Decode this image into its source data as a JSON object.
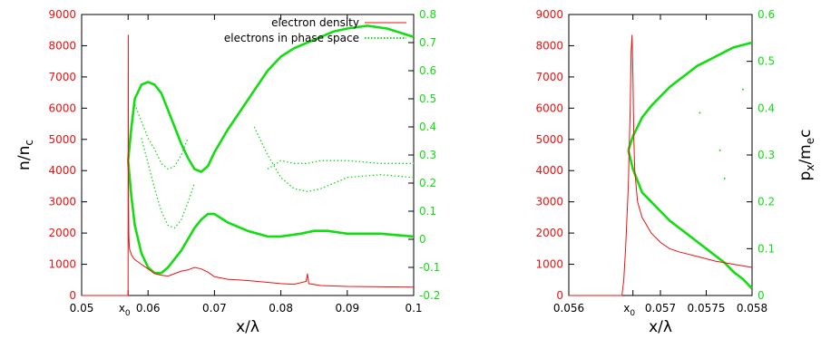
{
  "colors": {
    "density": "#ee1111",
    "phase": "#11dd11",
    "frame": "#000000"
  },
  "chart_data": [
    {
      "type": "line",
      "panel": "left",
      "xlabel": "x/λ",
      "ylabel_left": "n/n",
      "ylabel_left_sub": "c",
      "ylabel_right": "",
      "xlim": [
        0.05,
        0.1
      ],
      "ylim_left": [
        0,
        9000
      ],
      "ylim_right": [
        -0.2,
        0.8
      ],
      "x_ticks": [
        "0.05",
        "",
        "0.06",
        "0.07",
        "0.08",
        "0.09",
        "0.1"
      ],
      "x0_label": "x",
      "x0_sub": "0",
      "y_ticks_left": [
        "0",
        "1000",
        "2000",
        "3000",
        "4000",
        "5000",
        "6000",
        "7000",
        "8000",
        "9000"
      ],
      "y_ticks_right": [
        "-0.2",
        "-0.1",
        "0",
        "0.1",
        "0.2",
        "0.3",
        "0.4",
        "0.5",
        "0.6",
        "0.7",
        "0.8"
      ],
      "grid": false,
      "legend_position": "top-right",
      "series": [
        {
          "name": "electron density",
          "axis": "left",
          "x": [
            0.05,
            0.057,
            0.05702,
            0.05705,
            0.0571,
            0.0572,
            0.0575,
            0.0578,
            0.058,
            0.059,
            0.06,
            0.061,
            0.062,
            0.063,
            0.064,
            0.065,
            0.066,
            0.067,
            0.068,
            0.069,
            0.07,
            0.072,
            0.075,
            0.078,
            0.08,
            0.082,
            0.0838,
            0.084,
            0.0842,
            0.086,
            0.09,
            0.095,
            0.1
          ],
          "y": [
            0,
            0,
            8350,
            3500,
            1900,
            1500,
            1300,
            1200,
            1150,
            1000,
            850,
            700,
            650,
            620,
            700,
            780,
            820,
            900,
            850,
            750,
            600,
            520,
            480,
            420,
            380,
            360,
            450,
            700,
            380,
            320,
            290,
            280,
            270
          ]
        },
        {
          "name": "electrons in phase space",
          "axis": "right",
          "style": "points",
          "branches": [
            {
              "x": [
                0.057,
                0.0575,
                0.058,
                0.059,
                0.06,
                0.061,
                0.062,
                0.063,
                0.064,
                0.065,
                0.066,
                0.067,
                0.068,
                0.069,
                0.07,
                0.072,
                0.074,
                0.076,
                0.078,
                0.08,
                0.082,
                0.084,
                0.086,
                0.088,
                0.09,
                0.093,
                0.096,
                0.1
              ],
              "y": [
                0.28,
                0.4,
                0.5,
                0.55,
                0.56,
                0.55,
                0.52,
                0.46,
                0.4,
                0.34,
                0.29,
                0.25,
                0.24,
                0.26,
                0.31,
                0.39,
                0.46,
                0.53,
                0.6,
                0.65,
                0.68,
                0.7,
                0.72,
                0.74,
                0.75,
                0.76,
                0.75,
                0.72
              ]
            },
            {
              "x": [
                0.057,
                0.0575,
                0.058,
                0.059,
                0.06,
                0.061,
                0.062,
                0.063,
                0.064,
                0.065,
                0.066,
                0.067,
                0.068,
                0.069,
                0.07,
                0.072,
                0.075,
                0.078,
                0.08,
                0.083,
                0.085,
                0.087,
                0.09,
                0.095,
                0.1
              ],
              "y": [
                0.28,
                0.15,
                0.05,
                -0.05,
                -0.1,
                -0.12,
                -0.12,
                -0.1,
                -0.07,
                -0.04,
                0.0,
                0.04,
                0.07,
                0.09,
                0.09,
                0.06,
                0.03,
                0.01,
                0.01,
                0.02,
                0.03,
                0.03,
                0.02,
                0.02,
                0.01
              ]
            },
            {
              "x": [
                0.058,
                0.059,
                0.06,
                0.061,
                0.062,
                0.063,
                0.064,
                0.065,
                0.066
              ],
              "y": [
                0.48,
                0.42,
                0.36,
                0.32,
                0.27,
                0.25,
                0.26,
                0.3,
                0.36
              ]
            },
            {
              "x": [
                0.059,
                0.06,
                0.061,
                0.062,
                0.063,
                0.064,
                0.065,
                0.066,
                0.067
              ],
              "y": [
                0.36,
                0.27,
                0.18,
                0.1,
                0.05,
                0.04,
                0.07,
                0.13,
                0.2
              ]
            },
            {
              "x": [
                0.076,
                0.078,
                0.08,
                0.082,
                0.084,
                0.086,
                0.088,
                0.09,
                0.095,
                0.1
              ],
              "y": [
                0.4,
                0.3,
                0.22,
                0.18,
                0.17,
                0.18,
                0.2,
                0.22,
                0.23,
                0.22
              ]
            },
            {
              "x": [
                0.078,
                0.08,
                0.082,
                0.084,
                0.086,
                0.088,
                0.09,
                0.095,
                0.1
              ],
              "y": [
                0.25,
                0.28,
                0.27,
                0.27,
                0.28,
                0.28,
                0.28,
                0.27,
                0.27
              ]
            }
          ]
        }
      ]
    },
    {
      "type": "line",
      "panel": "right",
      "xlabel": "x/λ",
      "ylabel_right": "p",
      "ylabel_right_sub1": "x",
      "ylabel_right_mid": "/m",
      "ylabel_right_sub2": "e",
      "ylabel_right_end": "c",
      "xlim": [
        0.056,
        0.058
      ],
      "ylim_left": [
        0,
        9000
      ],
      "ylim_right": [
        0,
        0.6
      ],
      "x_ticks": [
        "0.056",
        "",
        "0.057",
        "0.0575",
        "0.058"
      ],
      "x0_label": "x",
      "x0_sub": "0",
      "y_ticks_left": [
        "0",
        "1000",
        "2000",
        "3000",
        "4000",
        "5000",
        "6000",
        "7000",
        "8000",
        "9000"
      ],
      "y_ticks_right": [
        "0",
        "0.1",
        "0.2",
        "0.3",
        "0.4",
        "0.5",
        "0.6"
      ],
      "grid": false,
      "series": [
        {
          "name": "electron density",
          "axis": "left",
          "x": [
            0.056,
            0.05658,
            0.0566,
            0.05662,
            0.05665,
            0.05667,
            0.05668,
            0.05669,
            0.0567,
            0.05671,
            0.05672,
            0.05675,
            0.0568,
            0.0569,
            0.057,
            0.0571,
            0.0572,
            0.0574,
            0.0576,
            0.0578,
            0.058
          ],
          "y": [
            0,
            0,
            500,
            1500,
            3500,
            6000,
            7800,
            8350,
            7000,
            5000,
            4000,
            3000,
            2500,
            2000,
            1700,
            1500,
            1400,
            1250,
            1100,
            1000,
            900
          ]
        },
        {
          "name": "electrons in phase space",
          "axis": "right",
          "style": "points",
          "branches": [
            {
              "x": [
                0.05665,
                0.0567,
                0.0568,
                0.0569,
                0.057,
                0.0571,
                0.0572,
                0.0573,
                0.0574,
                0.0575,
                0.0576,
                0.0577,
                0.0578,
                0.0579,
                0.058
              ],
              "y": [
                0.31,
                0.34,
                0.38,
                0.405,
                0.425,
                0.445,
                0.46,
                0.475,
                0.49,
                0.5,
                0.51,
                0.52,
                0.53,
                0.535,
                0.54
              ]
            },
            {
              "x": [
                0.05665,
                0.0567,
                0.0568,
                0.0569,
                0.057,
                0.0571,
                0.0572,
                0.0573,
                0.0574,
                0.0575,
                0.0576,
                0.0577,
                0.0578,
                0.0579,
                0.058
              ],
              "y": [
                0.31,
                0.27,
                0.22,
                0.2,
                0.18,
                0.16,
                0.145,
                0.13,
                0.115,
                0.1,
                0.085,
                0.07,
                0.05,
                0.035,
                0.015
              ]
            }
          ],
          "stray_points": {
            "x": [
              0.05743,
              0.05765,
              0.0577,
              0.0579
            ],
            "y": [
              0.39,
              0.31,
              0.25,
              0.44
            ]
          }
        }
      ]
    }
  ]
}
